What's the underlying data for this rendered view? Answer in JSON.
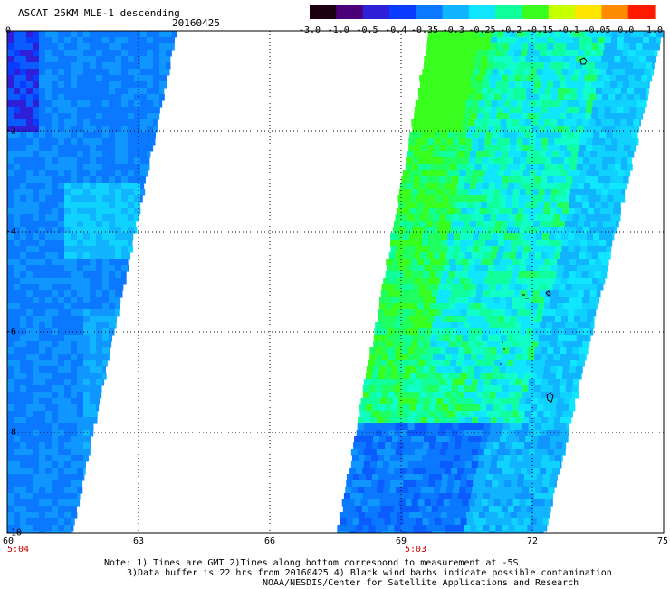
{
  "header": {
    "title": "ASCAT 25KM MLE-1 descending",
    "date": "20160425"
  },
  "colorbar": {
    "labels": [
      "-3.0",
      "-1.0",
      "-0.5",
      "-0.4",
      "-0.35",
      "-0.3",
      "-0.25",
      "-0.2",
      "-0.15",
      "-0.1",
      "-0.05",
      "0.0",
      "1.0"
    ],
    "colors": [
      "#1a0010",
      "#4b007a",
      "#2f1fd6",
      "#0a3cff",
      "#0a78ff",
      "#10b4ff",
      "#10e6ff",
      "#10ff9c",
      "#38ff20",
      "#c8ff00",
      "#ffe600",
      "#ff8c00",
      "#ff1a00"
    ]
  },
  "axes": {
    "x_ticks": [
      "60",
      "63",
      "66",
      "69",
      "72",
      "75"
    ],
    "y_ticks": [
      "0",
      "-2",
      "-4",
      "-6",
      "-8",
      "-10"
    ],
    "x_range": [
      60,
      75
    ],
    "y_range": [
      -10,
      0
    ]
  },
  "times": {
    "left_label": "5:04",
    "right_label": "5:03"
  },
  "notes": {
    "line1": "Note: 1) Times are GMT 2)Times along bottom correspond to measurement at -5S",
    "line2": "3)Data buffer is 22 hrs from 20160425 4) Black wind barbs indicate possible contamination",
    "line3": "NOAA/NESDIS/Center for Satellite Applications and Research"
  },
  "map_data": {
    "swaths": [
      {
        "name": "left",
        "lat_top": 0,
        "lat_bottom": -10,
        "lon_left": 60,
        "lon_right_top": 63.9,
        "lon_right_bottom": 61.5
      },
      {
        "name": "right",
        "lat_top": 0,
        "lat_bottom": -10,
        "lon_left_top": 69.6,
        "lon_left_bottom": 67.5,
        "lon_right_top": 75,
        "lon_right_bottom": 72.3
      }
    ]
  }
}
